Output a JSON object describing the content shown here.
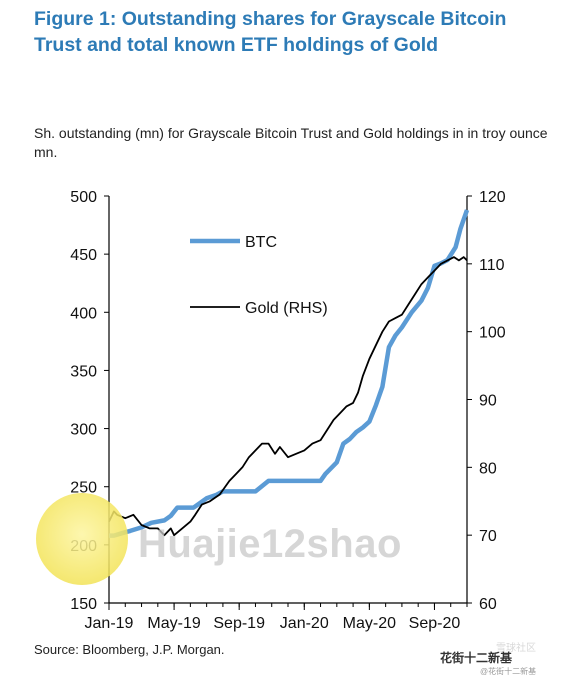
{
  "figure": {
    "title": "Figure 1: Outstanding shares for Grayscale Bitcoin Trust and total known ETF holdings of Gold",
    "subtitle": "Sh. outstanding (mn) for Grayscale Bitcoin Trust and Gold holdings in in troy ounce mn.",
    "source": "Source: Bloomberg, J.P. Morgan."
  },
  "watermark": {
    "text": "Huajie12shao",
    "brand": "花街十二新基",
    "brand_sub": "@花街十二新基",
    "brand_faint": "雪球社区"
  },
  "chart_data": {
    "type": "line",
    "title": "",
    "x_tick_labels": [
      "Jan-19",
      "May-19",
      "Sep-19",
      "Jan-20",
      "May-20",
      "Sep-20"
    ],
    "x_ticks_month_index": [
      0,
      4,
      8,
      12,
      16,
      20
    ],
    "x_range_month_index": [
      0,
      22
    ],
    "y_left": {
      "label": "",
      "ylim": [
        150,
        500
      ],
      "ticks": [
        150,
        200,
        250,
        300,
        350,
        400,
        450,
        500
      ]
    },
    "y_right": {
      "label": "",
      "ylim": [
        60,
        120
      ],
      "ticks": [
        60,
        70,
        80,
        90,
        100,
        110,
        120
      ]
    },
    "grid": false,
    "legend_placement": "top-left",
    "series": [
      {
        "name": "BTC",
        "axis": "left",
        "color": "#5b9bd5",
        "x": [
          0,
          0.3,
          0.8,
          1.3,
          2.0,
          2.6,
          3.4,
          3.8,
          4.2,
          5.2,
          5.6,
          6.0,
          6.6,
          7.0,
          7.6,
          8.0,
          9.0,
          9.8,
          10.4,
          11.2,
          11.8,
          12.2,
          13.0,
          13.3,
          14.0,
          14.4,
          14.8,
          15.2,
          15.6,
          16.0,
          16.4,
          16.8,
          17.2,
          17.6,
          18.0,
          18.6,
          19.2,
          19.6,
          20.0,
          20.4,
          20.8,
          21.3,
          21.6,
          22.0
        ],
        "y": [
          208,
          208,
          210,
          212,
          215,
          219,
          221,
          225,
          232,
          232,
          236,
          240,
          243,
          246,
          246,
          246,
          246,
          255,
          255,
          255,
          255,
          255,
          255,
          261,
          271,
          287,
          291,
          297,
          301,
          306,
          320,
          336,
          370,
          380,
          387,
          400,
          410,
          421,
          440,
          442,
          445,
          456,
          472,
          488
        ]
      },
      {
        "name": "Gold (RHS)",
        "axis": "right",
        "color": "#000000",
        "x": [
          0,
          0.3,
          0.5,
          1.0,
          1.5,
          2.0,
          2.5,
          3.0,
          3.4,
          3.8,
          4.0,
          4.5,
          5.0,
          5.3,
          5.7,
          6.2,
          6.8,
          7.4,
          7.8,
          8.2,
          8.6,
          9.0,
          9.4,
          9.8,
          10.2,
          10.5,
          11.0,
          11.5,
          12.0,
          12.5,
          13.0,
          13.4,
          13.8,
          14.2,
          14.6,
          15.0,
          15.3,
          15.6,
          16.0,
          16.4,
          16.8,
          17.2,
          17.6,
          18.0,
          18.4,
          18.8,
          19.2,
          19.6,
          20.0,
          20.4,
          20.8,
          21.2,
          21.5,
          21.8,
          22.0
        ],
        "y": [
          72.0,
          73.5,
          73.0,
          72.5,
          73.0,
          71.5,
          71.0,
          71.0,
          70.0,
          71.0,
          70.0,
          71.0,
          72.0,
          73.0,
          74.5,
          75.0,
          76.0,
          78.0,
          79.0,
          80.0,
          81.5,
          82.5,
          83.5,
          83.5,
          82.0,
          83.0,
          81.5,
          82.0,
          82.5,
          83.5,
          84.0,
          85.5,
          87.0,
          88.0,
          89.0,
          89.5,
          91.0,
          93.5,
          96.0,
          98.0,
          100.0,
          101.5,
          102.0,
          102.5,
          104.0,
          105.5,
          107.0,
          108.0,
          109.0,
          110.0,
          110.5,
          111.0,
          110.5,
          111.0,
          110.5
        ]
      }
    ]
  }
}
